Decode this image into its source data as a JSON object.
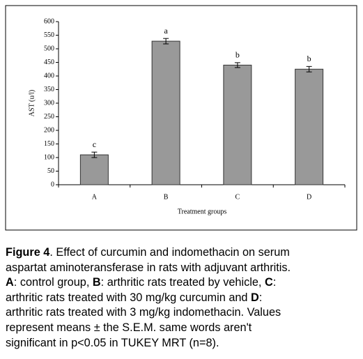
{
  "chart_data": {
    "type": "bar",
    "categories": [
      "A",
      "B",
      "C",
      "D"
    ],
    "values": [
      110,
      528,
      440,
      425
    ],
    "errors": [
      10,
      10,
      9,
      10
    ],
    "letters": [
      "c",
      "a",
      "b",
      "b"
    ],
    "color": "#999999",
    "ylabel": "AST (u/l)",
    "xlabel": "Treatment groups",
    "ylim": [
      0,
      600
    ],
    "yticks": [
      0,
      50,
      100,
      150,
      200,
      250,
      300,
      350,
      400,
      450,
      500,
      550,
      600
    ]
  },
  "caption_lines": [
    [
      {
        "text": "Figure 4",
        "bold": true
      },
      {
        "text": ". Effect of curcumin and indomethacin on serum",
        "bold": false
      }
    ],
    [
      {
        "text": "aspartat aminoteransferase in rats with adjuvant arthritis.",
        "bold": false
      }
    ],
    [
      {
        "text": "A",
        "bold": true
      },
      {
        "text": ": control group, ",
        "bold": false
      },
      {
        "text": "B",
        "bold": true
      },
      {
        "text": ": arthritic rats treated by vehicle, ",
        "bold": false
      },
      {
        "text": "C",
        "bold": true
      },
      {
        "text": ":",
        "bold": false
      }
    ],
    [
      {
        "text": "arthritic rats treated with 30 mg/kg curcumin and ",
        "bold": false
      },
      {
        "text": "D",
        "bold": true
      },
      {
        "text": ":",
        "bold": false
      }
    ],
    [
      {
        "text": "arthritic rats treated with 3 mg/kg indomethacin. Values",
        "bold": false
      }
    ],
    [
      {
        "text": "represent means ± the S.E.M. same words aren't",
        "bold": false
      }
    ],
    [
      {
        "text": "significant in p<0.05 in TUKEY MRT (n=8).",
        "bold": false
      }
    ]
  ]
}
